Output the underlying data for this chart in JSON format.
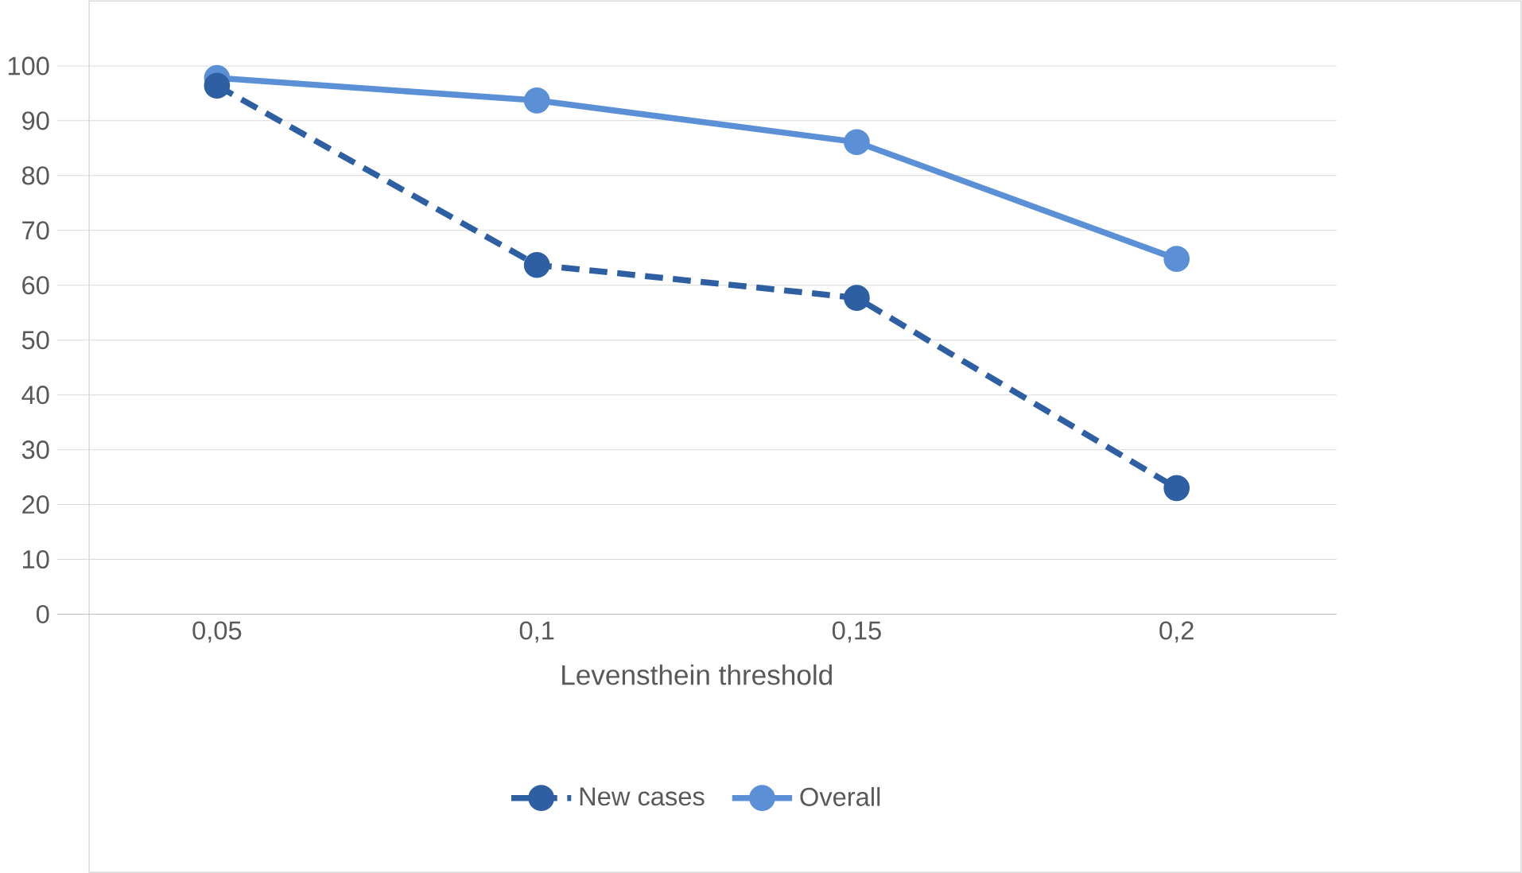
{
  "chart_data": {
    "type": "line",
    "xlabel": "Levensthein threshold",
    "categories": [
      "0,05",
      "0,1",
      "0,15",
      "0,2"
    ],
    "ylim": [
      0,
      100
    ],
    "yticks": [
      0,
      10,
      20,
      30,
      40,
      50,
      60,
      70,
      80,
      90,
      100
    ],
    "grid": "y",
    "legend": "bottom",
    "marker": "circle",
    "series": [
      {
        "name": "New cases",
        "color": "#2e5fa3",
        "line_style": "dashed",
        "values": [
          96.4,
          63.7,
          57.7,
          23.0
        ]
      },
      {
        "name": "Overall",
        "color": "#5b8fd6",
        "line_style": "solid",
        "values": [
          97.8,
          93.7,
          86.1,
          64.8
        ]
      }
    ]
  }
}
